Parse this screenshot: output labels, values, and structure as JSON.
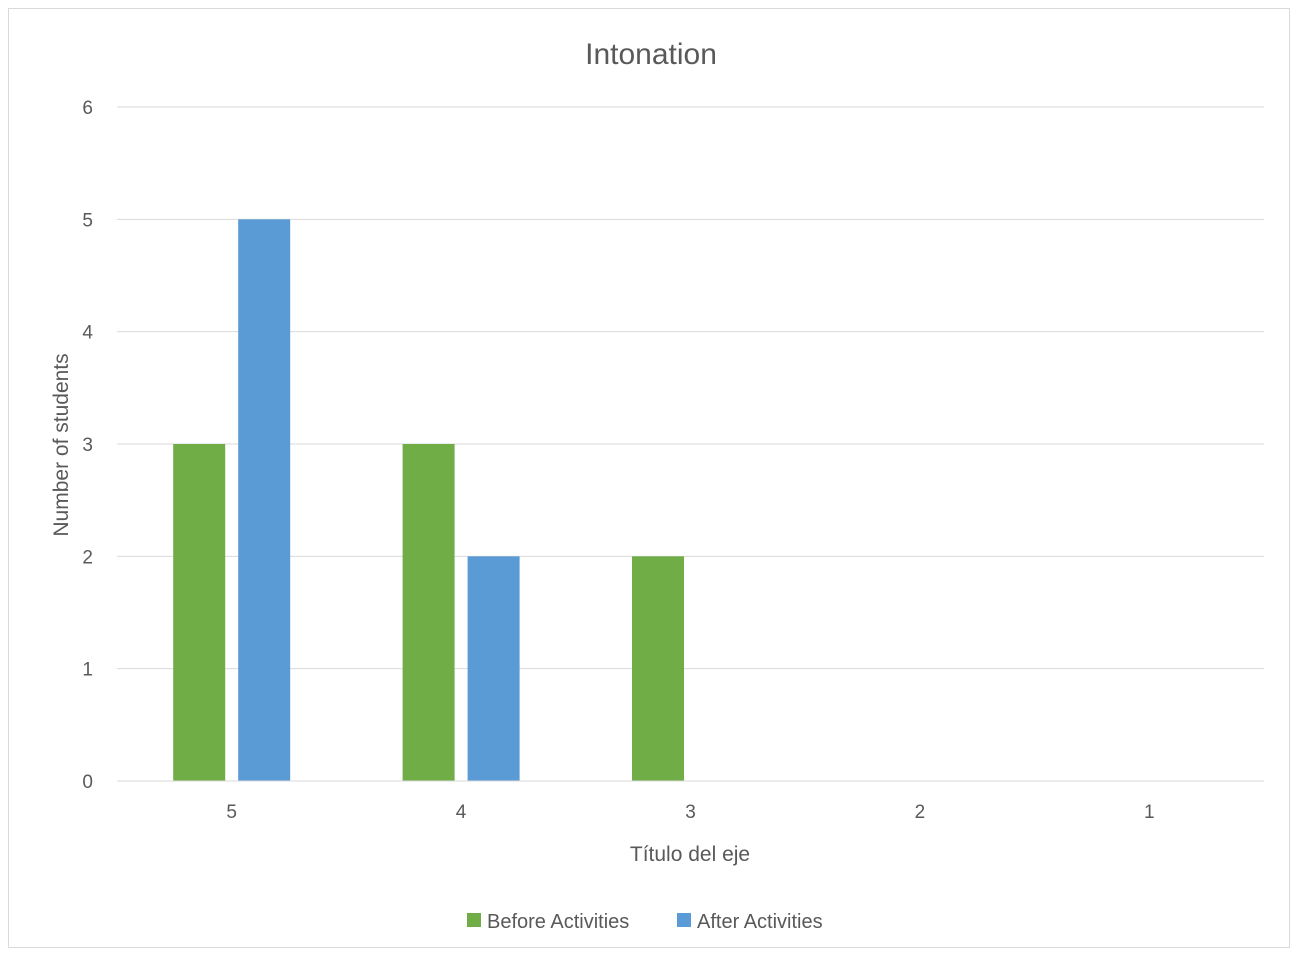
{
  "chart_data": {
    "type": "bar",
    "title": "Intonation",
    "xlabel": "Título del eje",
    "ylabel": "Number of students",
    "categories": [
      "5",
      "4",
      "3",
      "2",
      "1"
    ],
    "series": [
      {
        "name": "Before Activities",
        "values": [
          3,
          3,
          2,
          0,
          0
        ],
        "color": "#70ad47"
      },
      {
        "name": "After Activities",
        "values": [
          5,
          2,
          0,
          0,
          0
        ],
        "color": "#5b9bd5"
      }
    ],
    "ylim": [
      0,
      6
    ],
    "yticks": [
      "0",
      "1",
      "2",
      "3",
      "4",
      "5",
      "6"
    ],
    "grid": true,
    "legend_position": "bottom"
  }
}
